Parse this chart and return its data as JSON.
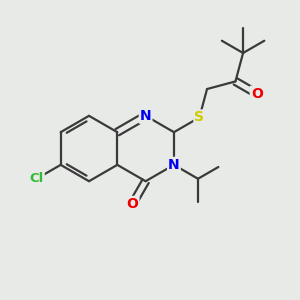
{
  "background_color": "#e8eae8",
  "atom_colors": {
    "C": "#3a3a3a",
    "N": "#0000ee",
    "O": "#ee0000",
    "S": "#cccc00",
    "Cl": "#33bb33"
  },
  "bond_color": "#3a3a3a",
  "bond_width": 1.6,
  "dbo": 0.12,
  "figsize": [
    3.0,
    3.0
  ],
  "dpi": 100,
  "xlim": [
    0,
    10
  ],
  "ylim": [
    0,
    10
  ]
}
